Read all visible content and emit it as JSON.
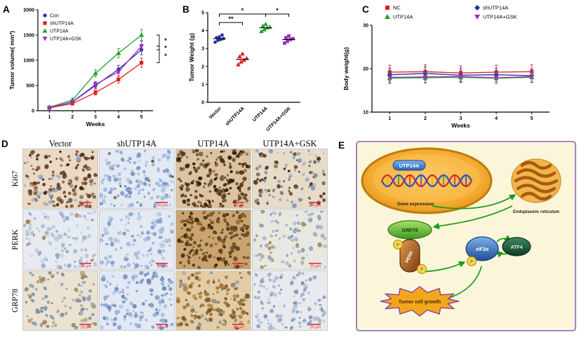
{
  "panels": {
    "A": {
      "label": "A"
    },
    "B": {
      "label": "B"
    },
    "C": {
      "label": "C"
    },
    "D": {
      "label": "D"
    },
    "E": {
      "label": "E"
    }
  },
  "chart_data": [
    {
      "id": "chartA",
      "type": "line",
      "title": "",
      "xlabel": "Weeks",
      "ylabel": "Tumor volume( mm³)",
      "x": [
        1,
        2,
        3,
        4,
        5
      ],
      "xlim": [
        0.5,
        5.5
      ],
      "ylim": [
        0,
        2000
      ],
      "yticks": [
        0,
        500,
        1000,
        1500,
        2000
      ],
      "legend": "inside-topleft",
      "grid": false,
      "sig_right": [
        "*",
        "*",
        "*"
      ],
      "margin": {
        "l": 46,
        "r": 42,
        "t": 8,
        "b": 30
      },
      "series": [
        {
          "name": "Con",
          "color": "#2433a0",
          "marker": "circle",
          "values": [
            60,
            170,
            500,
            820,
            1210
          ],
          "errors": [
            20,
            30,
            60,
            80,
            100
          ]
        },
        {
          "name": "shUTP14A",
          "color": "#e41d1d",
          "marker": "square",
          "values": [
            55,
            140,
            360,
            620,
            950
          ],
          "errors": [
            18,
            28,
            50,
            70,
            90
          ]
        },
        {
          "name": "UTP14A",
          "color": "#23a02a",
          "marker": "triangle",
          "values": [
            70,
            210,
            740,
            1140,
            1500
          ],
          "errors": [
            25,
            40,
            70,
            90,
            110
          ]
        },
        {
          "name": "UTP14A+GSK",
          "color": "#9a2fbe",
          "marker": "triangle-down",
          "values": [
            60,
            175,
            520,
            770,
            1280
          ],
          "errors": [
            20,
            32,
            60,
            80,
            100
          ]
        }
      ]
    },
    {
      "id": "chartB",
      "type": "scatter",
      "title": "",
      "xlabel": "",
      "ylabel": "Tumor Weight (g)",
      "ylim": [
        0,
        5
      ],
      "yticks": [
        0,
        1,
        2,
        3,
        4,
        5
      ],
      "grid": false,
      "categories": [
        "Vector",
        "shUTP14A",
        "UTP14A",
        "UTP14A+GSK"
      ],
      "margin": {
        "l": 30,
        "r": 10,
        "t": 14,
        "b": 58
      },
      "groups": [
        {
          "name": "Vector",
          "color": "#2433a0",
          "marker": "circle",
          "points": [
            3.35,
            3.45,
            3.5,
            3.55,
            3.6,
            3.65,
            3.75
          ],
          "mean": 3.55
        },
        {
          "name": "shUTP14A",
          "color": "#e41d1d",
          "marker": "triangle",
          "points": [
            2.1,
            2.25,
            2.35,
            2.45,
            2.55,
            2.7
          ],
          "mean": 2.4
        },
        {
          "name": "UTP14A",
          "color": "#23a02a",
          "marker": "triangle",
          "points": [
            3.95,
            4.05,
            4.15,
            4.2,
            4.25,
            4.35
          ],
          "mean": 4.15
        },
        {
          "name": "UTP14A+GSK",
          "color": "#9a2fbe",
          "marker": "square",
          "points": [
            3.3,
            3.4,
            3.5,
            3.55,
            3.6,
            3.7
          ],
          "mean": 3.5
        }
      ],
      "sig": [
        {
          "a": 0,
          "b": 2,
          "y": 4.92,
          "label": "*"
        },
        {
          "a": 2,
          "b": 3,
          "y": 4.92,
          "label": "*"
        },
        {
          "a": 0,
          "b": 1,
          "y": 4.45,
          "label": "**"
        }
      ]
    },
    {
      "id": "chartC",
      "type": "line",
      "title": "",
      "xlabel": "Weeks",
      "ylabel": "Body weight(g)",
      "x": [
        1,
        2,
        3,
        4,
        5
      ],
      "xlim": [
        0.5,
        5.5
      ],
      "ylim": [
        10,
        30
      ],
      "yticks": [
        10,
        20,
        30
      ],
      "legend": "top-2col",
      "grid": false,
      "margin": {
        "l": 62,
        "r": 42,
        "t": 34,
        "b": 32
      },
      "series": [
        {
          "name": "NC",
          "color": "#e41d1d",
          "marker": "square",
          "values": [
            19.2,
            19.3,
            19.0,
            19.2,
            19.3
          ],
          "err": 1.6
        },
        {
          "name": "shUTP14A",
          "color": "#2433a0",
          "marker": "diamond",
          "values": [
            18.6,
            18.9,
            18.5,
            18.6,
            18.4
          ],
          "err": 1.5
        },
        {
          "name": "UTP14A",
          "color": "#23a02a",
          "marker": "triangle",
          "values": [
            17.8,
            17.9,
            18.0,
            17.8,
            18.0
          ],
          "err": 1.2
        },
        {
          "name": "UTP14A+GSK",
          "color": "#9a2fbe",
          "marker": "triangle-down",
          "values": [
            18.0,
            18.1,
            18.2,
            17.9,
            18.2
          ],
          "err": 1.3
        }
      ]
    }
  ],
  "panelD": {
    "col_headers": [
      "Vector",
      "shUTP14A",
      "UTP14A",
      "UTP14A+GSK"
    ],
    "row_labels": [
      "Ki67",
      "PERK",
      "GRP78"
    ],
    "scale_bar": "20 μm",
    "tiles": [
      [
        {
          "bg": "#ead9c4",
          "dots": [
            {
              "c": "#3f2410",
              "n": 70
            },
            {
              "c": "#74492a",
              "n": 55
            },
            {
              "c": "#8ea6c6",
              "n": 30
            }
          ]
        },
        {
          "bg": "#e3eaf3",
          "dots": [
            {
              "c": "#7492c2",
              "n": 75
            },
            {
              "c": "#a5bcdc",
              "n": 55
            },
            {
              "c": "#6b4a2e",
              "n": 6
            }
          ]
        },
        {
          "bg": "#dcc3a2",
          "dots": [
            {
              "c": "#2f1c06",
              "n": 110
            },
            {
              "c": "#5c3812",
              "n": 70
            }
          ]
        },
        {
          "bg": "#e6dcc9",
          "dots": [
            {
              "c": "#54331a",
              "n": 55
            },
            {
              "c": "#8298bc",
              "n": 50
            }
          ]
        }
      ],
      [
        {
          "bg": "#e7ebf1",
          "dots": [
            {
              "c": "#93abc9",
              "n": 65
            },
            {
              "c": "#bcc9dd",
              "n": 45
            },
            {
              "c": "#a5835d",
              "n": 10
            }
          ]
        },
        {
          "bg": "#e4eaf4",
          "dots": [
            {
              "c": "#7e9cc6",
              "n": 75
            },
            {
              "c": "#adc0e0",
              "n": 50
            }
          ]
        },
        {
          "bg": "#c9a470",
          "dots": [
            {
              "c": "#45280c",
              "n": 105
            },
            {
              "c": "#6d4216",
              "n": 70
            }
          ]
        },
        {
          "bg": "#e8e8e2",
          "dots": [
            {
              "c": "#8ba1c1",
              "n": 60
            },
            {
              "c": "#a98a5e",
              "n": 25
            }
          ]
        }
      ],
      [
        {
          "bg": "#eae2d2",
          "dots": [
            {
              "c": "#7a90b2",
              "n": 65
            },
            {
              "c": "#a8865c",
              "n": 40
            }
          ]
        },
        {
          "bg": "#e2e9f5",
          "dots": [
            {
              "c": "#6e8ebc",
              "n": 85
            },
            {
              "c": "#9cb2d6",
              "n": 50
            }
          ]
        },
        {
          "bg": "#e3cda6",
          "dots": [
            {
              "c": "#7c5220",
              "n": 75
            },
            {
              "c": "#9c6e30",
              "n": 55
            },
            {
              "c": "#8298b8",
              "n": 18
            }
          ]
        },
        {
          "bg": "#e8eaee",
          "dots": [
            {
              "c": "#7e96bc",
              "n": 70
            },
            {
              "c": "#aab9d1",
              "n": 40
            }
          ]
        }
      ]
    ]
  },
  "panelE": {
    "labels": {
      "utp14a": "UTP14A",
      "gene_expression": "Gene expression",
      "er": "Endoplasmic reticulum",
      "grp78": "GRP78",
      "perk": "PERK",
      "p": "P",
      "eif2a": "eIF2α",
      "atf4": "ATF4",
      "tumor": "Tumor cell growth"
    },
    "colors": {
      "arrow": "#1a9a1a",
      "box_border": "#8a63b5",
      "box_bg": "#fbf6da"
    }
  }
}
